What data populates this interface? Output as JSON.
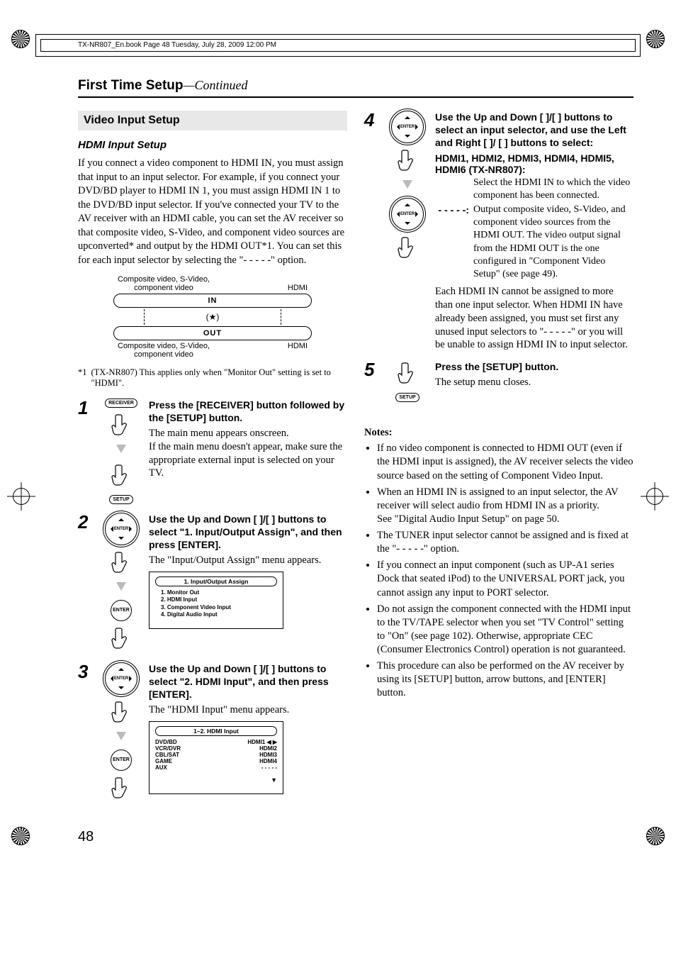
{
  "meta": {
    "print_header": "TX-NR807_En.book  Page 48  Tuesday, July 28, 2009  12:00 PM",
    "page_number": "48"
  },
  "title": {
    "main": "First Time Setup",
    "cont": "—Continued"
  },
  "section": {
    "heading": "Video Input Setup",
    "subheading": "HDMI Input Setup",
    "intro": "If you connect a video component to HDMI IN, you must assign that input to an input selector. For example, if you connect your DVD/BD player to HDMI IN 1, you must assign HDMI IN 1 to the DVD/BD input selector. If you've connected your TV to the AV receiver with an HDMI cable, you can set the AV receiver so that composite video, S-Video, and component video sources are upconverted* and output by the HDMI OUT*1. You can set this for each input selector by selecting the \"- - - - -\" option.",
    "footnote_mark": "*1",
    "footnote": "(TX-NR807) This applies only when \"Monitor Out\" setting is set to \"HDMI\"."
  },
  "diagram": {
    "top_left": "Composite video, S-Video,\ncomponent video",
    "top_right": "HDMI",
    "in": "IN",
    "star": "(   )",
    "out": "OUT",
    "bot_left": "Composite video, S-Video,\ncomponent video",
    "bot_right": "HDMI"
  },
  "steps": {
    "s1": {
      "num": "1",
      "btn1": "RECEIVER",
      "btn2": "SETUP",
      "instr": "Press the [RECEIVER] button followed by the [SETUP] button.",
      "desc": "The main menu appears onscreen.\nIf the main menu doesn't appear, make sure the appropriate external input is selected on your TV."
    },
    "s2": {
      "num": "2",
      "btn_center": "ENTER",
      "btn2": "ENTER",
      "instr": "Use the Up and Down [   ]/[   ] buttons to select \"1. Input/Output Assign\", and then press [ENTER].",
      "desc": "The \"Input/Output Assign\" menu appears.",
      "osd_title": "1.   Input/Output Assign",
      "osd_items": [
        "1.   Monitor Out",
        "2.   HDMI Input",
        "3.   Component Video Input",
        "4.   Digital Audio Input"
      ]
    },
    "s3": {
      "num": "3",
      "btn_center": "ENTER",
      "btn2": "ENTER",
      "instr": "Use the Up and Down [   ]/[   ] buttons to select \"2. HDMI Input\", and then press [ENTER].",
      "desc": "The \"HDMI Input\" menu appears.",
      "osd_title": "1–2.   HDMI Input",
      "osd_rows": [
        {
          "k": "DVD/BD",
          "v": "HDMI1",
          "sel": true
        },
        {
          "k": "VCR/DVR",
          "v": "HDMI2",
          "sel": false
        },
        {
          "k": "CBL/SAT",
          "v": "HDMI3",
          "sel": false
        },
        {
          "k": "GAME",
          "v": "HDMI4",
          "sel": false
        },
        {
          "k": "AUX",
          "v": "- - - - -",
          "sel": false
        }
      ]
    },
    "s4": {
      "num": "4",
      "btn_center": "ENTER",
      "instr": "Use the Up and Down [   ]/[   ] buttons to select an input selector, and use the Left and Right [   ]/ [   ] buttons to select:",
      "def_head": "HDMI1, HDMI2, HDMI3, HDMI4, HDMI5, HDMI6 (TX-NR807):",
      "def1_v": "Select the HDMI IN to which the video component has been connected.",
      "def2_k": "- - - - -:",
      "def2_v": "Output composite video, S-Video, and component video sources from the HDMI OUT. The video output signal from the HDMI OUT is the one configured in \"Component Video Setup\" (see page 49).",
      "tail": "Each HDMI IN cannot be assigned to more than one input selector. When HDMI IN have already been assigned, you must set first any unused input selectors to \"- - - - -\" or you will be unable to assign HDMI IN to input selector."
    },
    "s5": {
      "num": "5",
      "btn": "SETUP",
      "instr": "Press the [SETUP] button.",
      "desc": "The setup menu closes."
    }
  },
  "notes": {
    "head": "Notes:",
    "items": [
      "If no video component is connected to HDMI OUT (even if the HDMI input is assigned), the AV receiver selects the video source based on the setting of Component Video Input.",
      "When an HDMI IN is assigned to an input selector, the AV receiver will select audio from HDMI IN as a priority.\nSee \"Digital Audio Input Setup\" on page 50.",
      "The TUNER input selector cannot be assigned and is fixed at the \"- - - - -\" option.",
      "If you connect an input component (such as UP-A1 series Dock that seated iPod) to the UNIVERSAL PORT jack, you cannot assign any input to PORT selector.",
      "Do not assign the component connected with the HDMI input to the TV/TAPE selector when you set \"TV Control\" setting to \"On\" (see page 102). Otherwise, appropriate CEC (Consumer Electronics Control) operation is not guaranteed.",
      "This procedure can also be performed on the AV receiver by using its [SETUP] button, arrow buttons, and [ENTER] button."
    ]
  }
}
